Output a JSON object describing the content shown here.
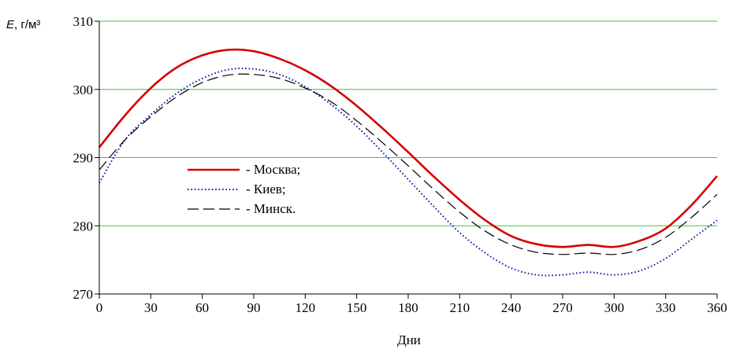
{
  "chart_data": {
    "type": "line",
    "xlabel": "Дни",
    "ylabel_symbol": "E",
    "ylabel_unit": ", г/м³",
    "xlim": [
      0,
      360
    ],
    "ylim": [
      270,
      310
    ],
    "x_ticks": [
      0,
      30,
      60,
      90,
      120,
      150,
      180,
      210,
      240,
      270,
      300,
      330,
      360
    ],
    "y_ticks": [
      270,
      280,
      290,
      300,
      310
    ],
    "grid": "horizontal",
    "legend_position": "left-middle",
    "x": [
      0,
      15,
      30,
      45,
      60,
      75,
      90,
      105,
      120,
      135,
      150,
      165,
      180,
      195,
      210,
      225,
      240,
      255,
      270,
      285,
      300,
      315,
      330,
      345,
      360
    ],
    "series": [
      {
        "name": "- Москва;",
        "color": "#d40000",
        "style": "solid",
        "values": [
          291.5,
          296.2,
          300.2,
          303.2,
          305.0,
          305.8,
          305.6,
          304.5,
          302.8,
          300.5,
          297.6,
          294.3,
          290.8,
          287.2,
          283.8,
          280.8,
          278.5,
          277.3,
          276.9,
          277.2,
          276.9,
          277.8,
          279.6,
          283.0,
          287.3
        ]
      },
      {
        "name": "- Киев;",
        "color": "#1a1aa6",
        "style": "dotted",
        "values": [
          286.3,
          292.6,
          296.3,
          299.4,
          301.6,
          302.9,
          303.0,
          302.2,
          300.4,
          297.8,
          294.6,
          290.8,
          286.8,
          282.8,
          279.0,
          276.0,
          273.8,
          272.8,
          272.8,
          273.2,
          272.8,
          273.4,
          275.2,
          278.0,
          280.8
        ]
      },
      {
        "name": "- Минск.",
        "color": "#000000",
        "style": "dashed",
        "values": [
          288.2,
          292.6,
          296.0,
          298.9,
          301.0,
          302.1,
          302.2,
          301.6,
          300.2,
          298.2,
          295.4,
          292.2,
          288.8,
          285.3,
          282.0,
          279.2,
          277.2,
          276.1,
          275.8,
          276.0,
          275.8,
          276.5,
          278.3,
          281.2,
          284.6
        ]
      }
    ]
  }
}
